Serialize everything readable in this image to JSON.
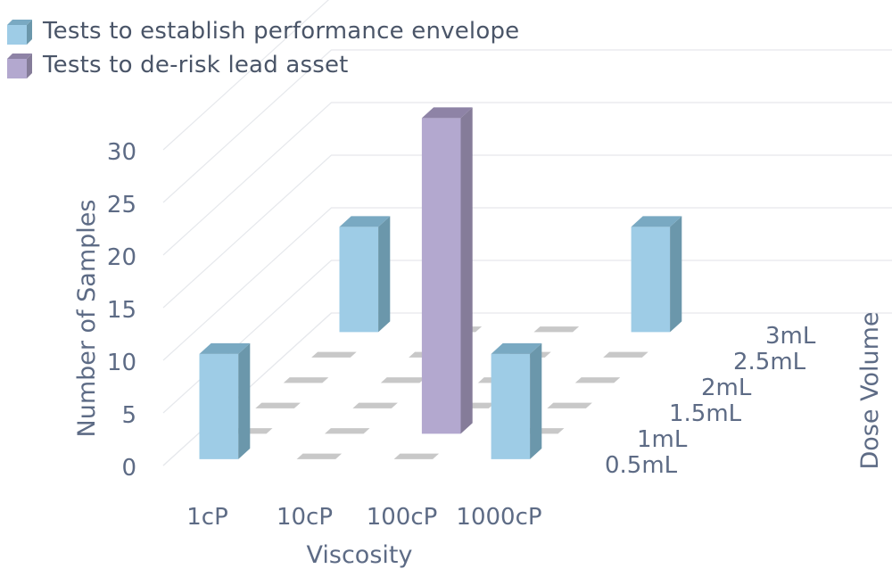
{
  "legend": [
    {
      "label": "Tests to establish performance envelope",
      "color": "#9ecce6",
      "side_color": "#6b97ab",
      "top_color": "#79a9c2",
      "name": "legend-item-performance-envelope"
    },
    {
      "label": "Tests to de-risk lead asset",
      "color": "#b3a8cf",
      "side_color": "#857c99",
      "top_color": "#8e83a6",
      "name": "legend-item-de-risk-lead-asset"
    }
  ],
  "chart_data": {
    "type": "bar",
    "three_d": true,
    "xlabel": "Viscosity",
    "ylabel": "Number of Samples",
    "zlabel": "Dose Volume",
    "categories": [
      "1cP",
      "10cP",
      "100cP",
      "1000cP"
    ],
    "depth_categories": [
      "0.5mL",
      "1mL",
      "1.5mL",
      "2mL",
      "2.5mL",
      "3mL"
    ],
    "y_ticks": [
      0,
      5,
      10,
      15,
      20,
      25,
      30
    ],
    "ylim": [
      0,
      30
    ],
    "series": [
      {
        "name": "Tests to establish performance envelope",
        "points": [
          {
            "x": "1cP",
            "z": "0.5mL",
            "y": 10
          },
          {
            "x": "1cP",
            "z": "3mL",
            "y": 10
          },
          {
            "x": "1000cP",
            "z": "0.5mL",
            "y": 10
          },
          {
            "x": "1000cP",
            "z": "3mL",
            "y": 10
          }
        ]
      },
      {
        "name": "Tests to de-risk lead asset",
        "points": [
          {
            "x": "100cP",
            "z": "1mL",
            "y": 30
          }
        ]
      }
    ],
    "grid": true,
    "legend_position": "top-left"
  }
}
